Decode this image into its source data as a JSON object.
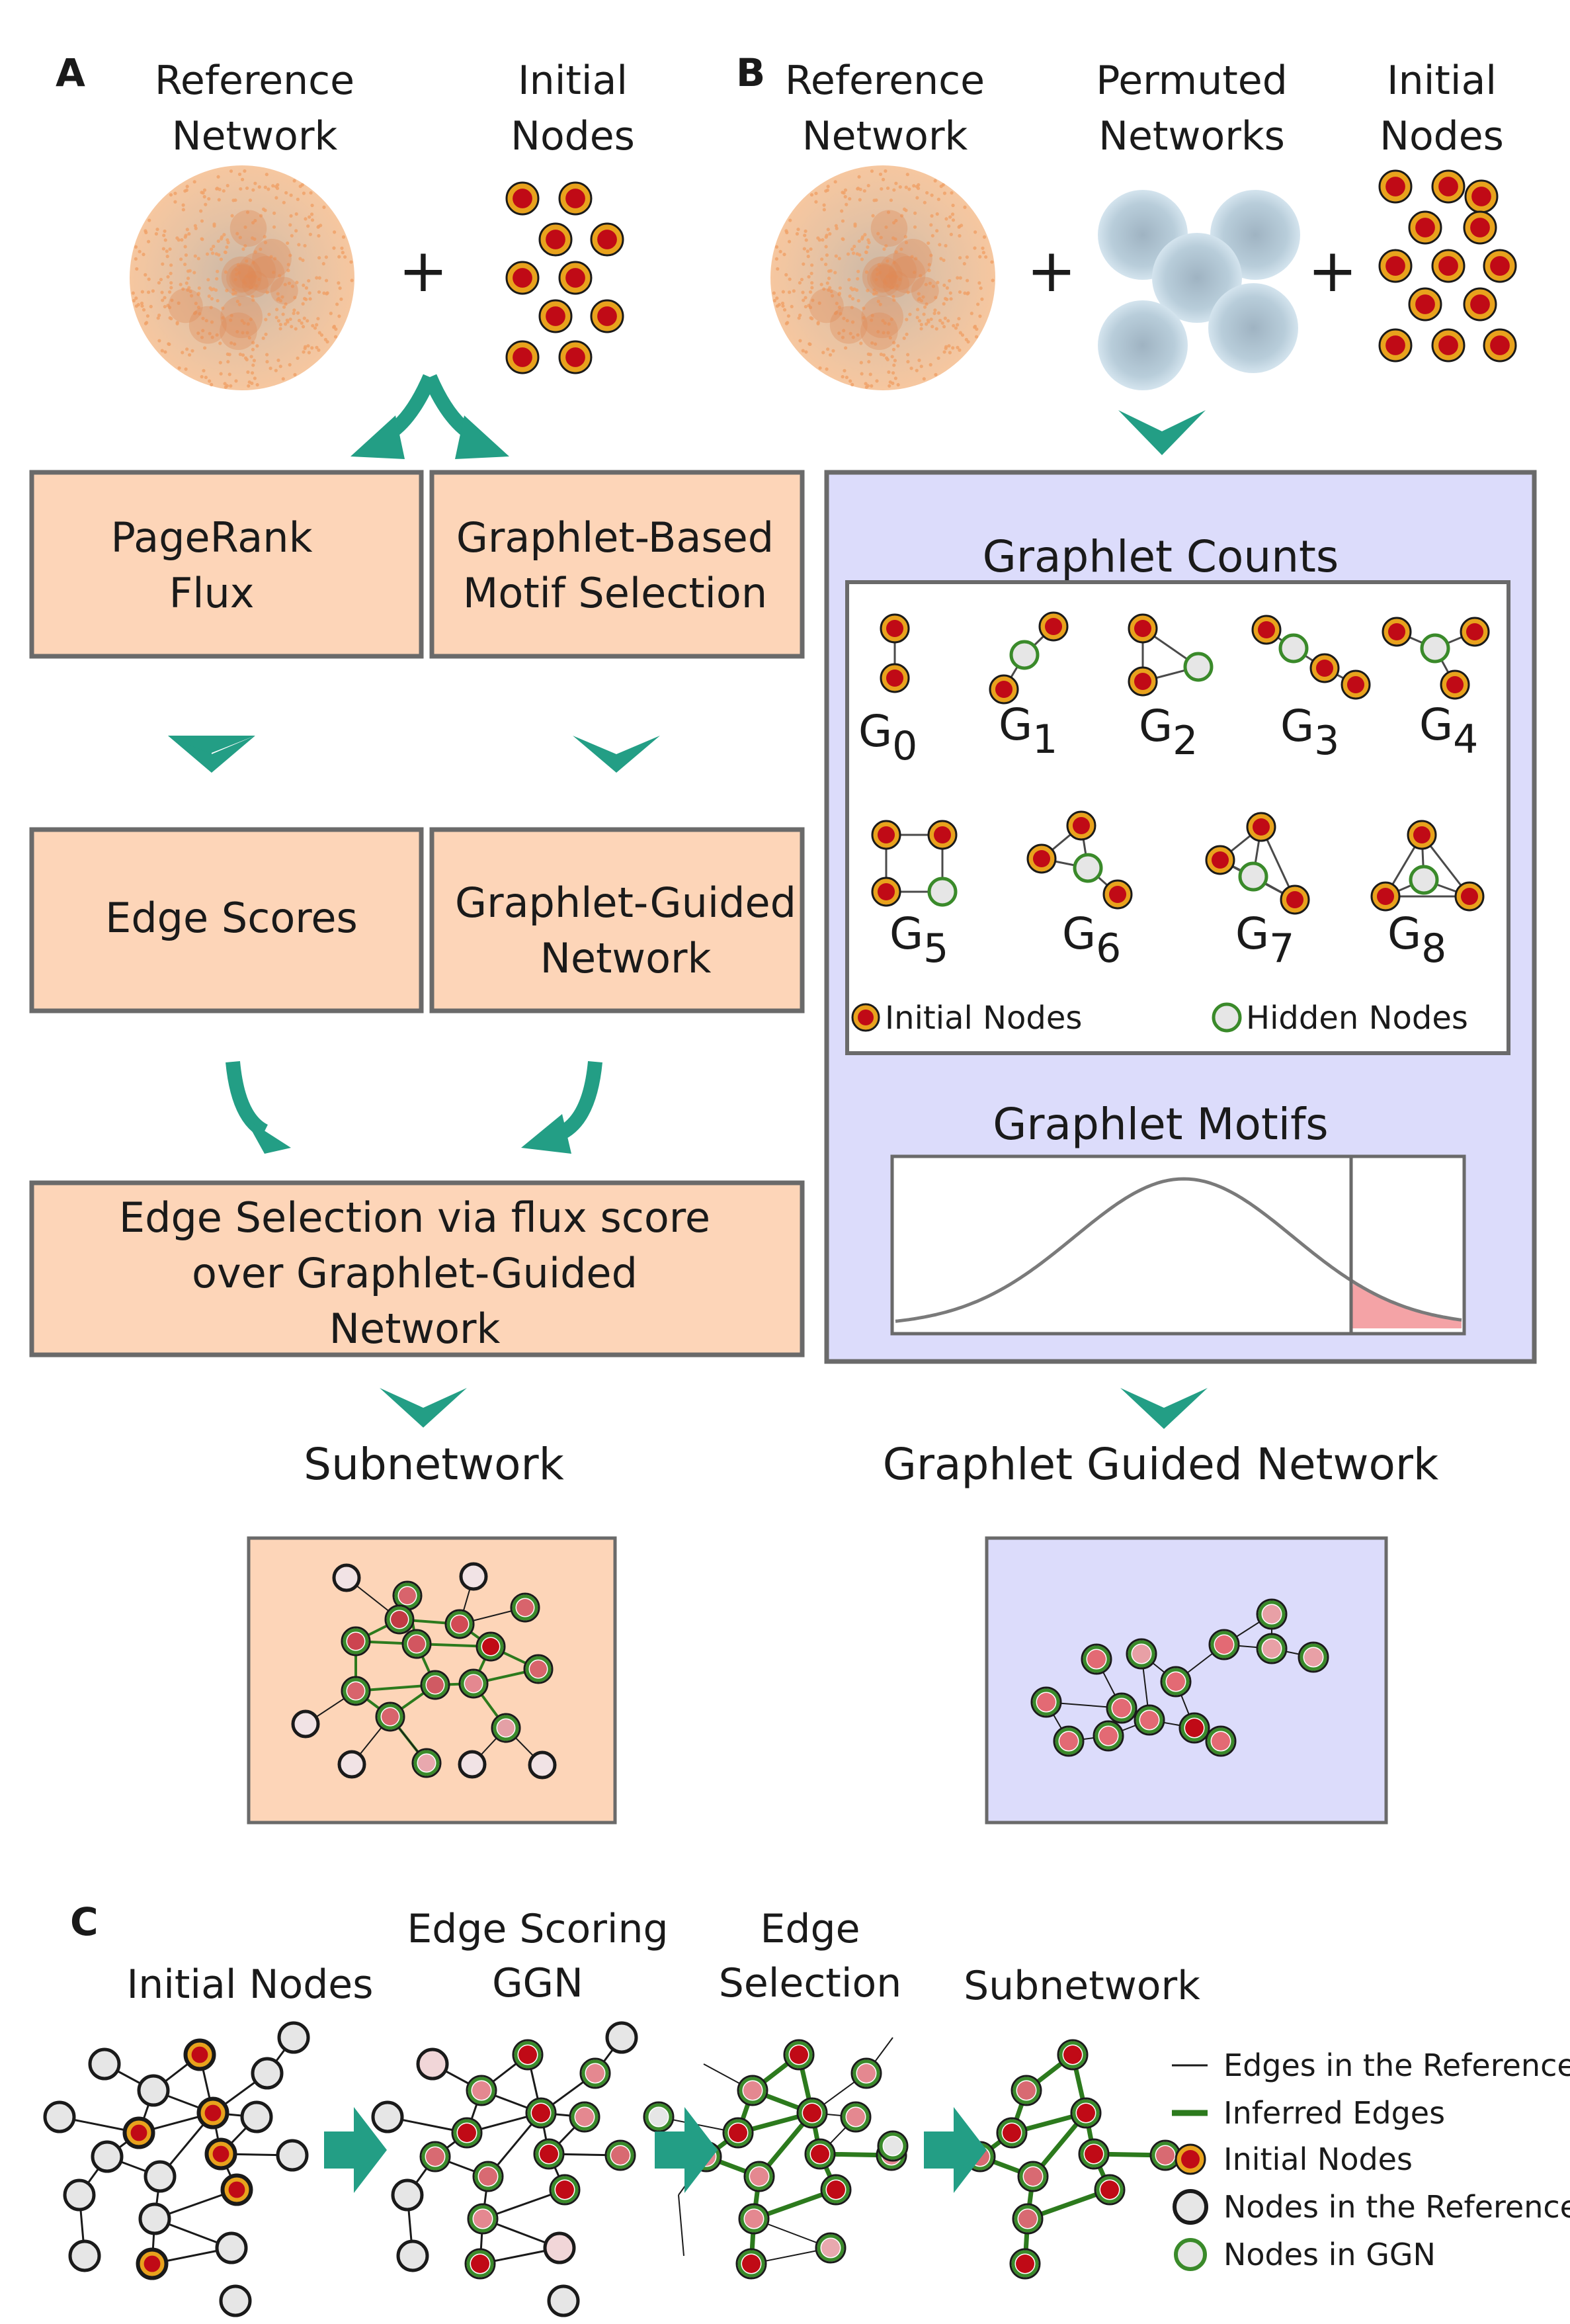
{
  "panels": {
    "a": "A",
    "b": "B",
    "c": "C"
  },
  "panel_a": {
    "reference_network": [
      "Reference",
      "Network"
    ],
    "initial_nodes": [
      "Initial",
      "Nodes"
    ],
    "plus": "+",
    "pagerank_flux": [
      "PageRank",
      "Flux"
    ],
    "graphlet_based": [
      "Graphlet-Based",
      "Motif Selection"
    ],
    "edge_scores": "Edge Scores",
    "graphlet_guided": [
      "Graphlet-Guided",
      "Network"
    ],
    "edge_selection": [
      "Edge Selection via flux score",
      "over Graphlet-Guided",
      "Network"
    ],
    "subnetwork": "Subnetwork"
  },
  "panel_b": {
    "reference_network": [
      "Reference",
      "Network"
    ],
    "permuted_networks": [
      "Permuted",
      "Networks"
    ],
    "initial_nodes": [
      "Initial",
      "Nodes"
    ],
    "plus": "+",
    "graphlet_counts": "Graphlet Counts",
    "graphlets": [
      {
        "base": "G",
        "sub": "0"
      },
      {
        "base": "G",
        "sub": "1"
      },
      {
        "base": "G",
        "sub": "2"
      },
      {
        "base": "G",
        "sub": "3"
      },
      {
        "base": "G",
        "sub": "4"
      },
      {
        "base": "G",
        "sub": "5"
      },
      {
        "base": "G",
        "sub": "6"
      },
      {
        "base": "G",
        "sub": "7"
      },
      {
        "base": "G",
        "sub": "8"
      }
    ],
    "legend_initial": "Initial Nodes",
    "legend_hidden": "Hidden Nodes",
    "graphlet_motifs": "Graphlet Motifs",
    "graphlet_guided_network": "Graphlet Guided Network"
  },
  "panel_c": {
    "steps": [
      [
        "Initial Nodes"
      ],
      [
        "Edge Scoring",
        "GGN"
      ],
      [
        "Edge",
        "Selection"
      ],
      [
        "Subnetwork"
      ]
    ],
    "legend": [
      "Edges in the Reference",
      "Inferred Edges",
      "Initial Nodes",
      "Nodes in the Reference",
      "Nodes in GGN"
    ]
  },
  "colors": {
    "box_peach": "#fdd5b8",
    "box_lavender": "#dcdcfb",
    "teal": "#239e85",
    "node_red": "#c00a16",
    "node_gold": "#e8a21d",
    "node_green_ring": "#3a8a2a",
    "node_gray": "#e6e6e6",
    "edge_green": "#2c7a1d",
    "tail_pink": "#f4a3a6",
    "orange_dots": "#f0a26a",
    "blue_cloud": "#a9bfd0"
  },
  "icons": [
    "plus-icon",
    "teal-chevron-arrow",
    "teal-curved-arrow",
    "teal-block-arrow",
    "network-cloud-icon"
  ]
}
